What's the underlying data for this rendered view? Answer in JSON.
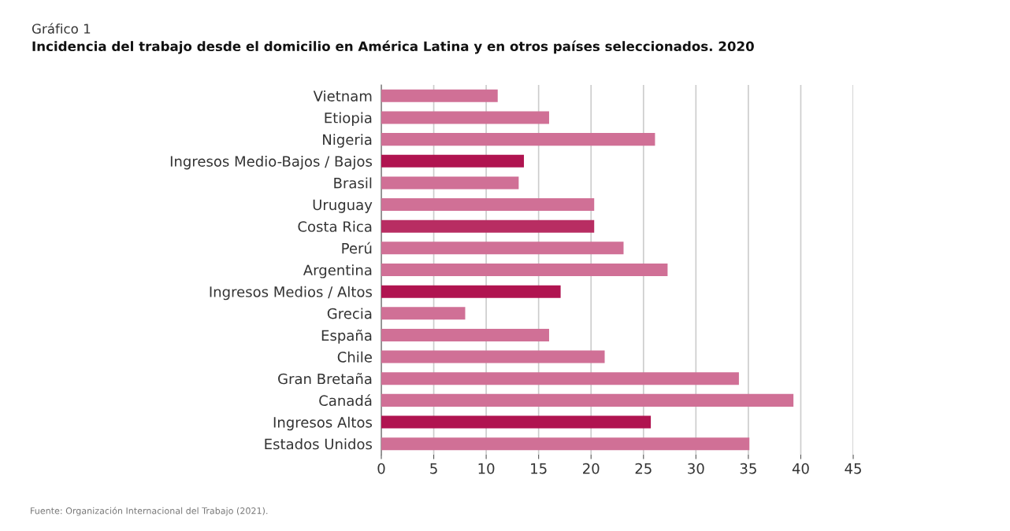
{
  "chart_data": {
    "type": "bar",
    "orientation": "horizontal",
    "title": "Incidencia del trabajo desde el domicilio en América Latina y en otros países seleccionados. 2020",
    "subtitle": "Gráfico 1",
    "categories": [
      "Vietnam",
      "Etiopia",
      "Nigeria",
      "Ingresos Medio-Bajos / Bajos",
      "Brasil",
      "Uruguay",
      "Costa Rica",
      "Perú",
      "Argentina",
      "Ingresos Medios / Altos",
      "Grecia",
      "España",
      "Chile",
      "Gran Bretaña",
      "Canadá",
      "Ingresos Altos",
      "Estados Unidos"
    ],
    "values": [
      11.1,
      16.0,
      26.1,
      13.6,
      13.1,
      20.3,
      20.3,
      23.1,
      27.3,
      17.1,
      8.0,
      16.0,
      21.3,
      34.1,
      39.3,
      25.7,
      35.1
    ],
    "colors": [
      "#d07096",
      "#d07096",
      "#d07096",
      "#b01450",
      "#d07096",
      "#d07096",
      "#b82d62",
      "#d07096",
      "#d07096",
      "#b01450",
      "#d07096",
      "#d07096",
      "#d07096",
      "#d07096",
      "#d07096",
      "#b01450",
      "#d07096"
    ],
    "xlim": [
      0,
      45
    ],
    "xticks": [
      0,
      5,
      10,
      15,
      20,
      25,
      30,
      35,
      40,
      45
    ],
    "grid": "x",
    "annotations": [
      "Fuente: Organización Internacional del Trabajo (2021)."
    ]
  }
}
